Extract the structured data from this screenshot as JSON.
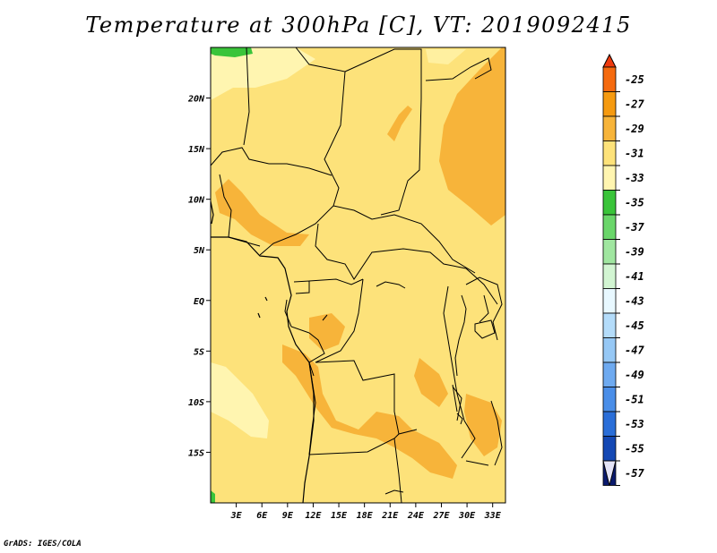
{
  "title": "Temperature at 300hPa [C], VT: 2019092415",
  "credit": "GrADS: IGES/COLA",
  "map": {
    "lon_range": [
      0,
      34.5
    ],
    "lat_range": [
      -20,
      25
    ],
    "lat_ticks": [
      {
        "value": 20,
        "label": "20N"
      },
      {
        "value": 15,
        "label": "15N"
      },
      {
        "value": 10,
        "label": "10N"
      },
      {
        "value": 5,
        "label": "5N"
      },
      {
        "value": 0,
        "label": "EQ"
      },
      {
        "value": -5,
        "label": "5S"
      },
      {
        "value": -10,
        "label": "10S"
      },
      {
        "value": -15,
        "label": "15S"
      }
    ],
    "lon_ticks": [
      {
        "value": 3,
        "label": "3E"
      },
      {
        "value": 6,
        "label": "6E"
      },
      {
        "value": 9,
        "label": "9E"
      },
      {
        "value": 12,
        "label": "12E"
      },
      {
        "value": 15,
        "label": "15E"
      },
      {
        "value": 18,
        "label": "18E"
      },
      {
        "value": 21,
        "label": "21E"
      },
      {
        "value": 24,
        "label": "24E"
      },
      {
        "value": 27,
        "label": "27E"
      },
      {
        "value": 30,
        "label": "30E"
      },
      {
        "value": 33,
        "label": "33E"
      }
    ],
    "background_color": "#fde27a"
  },
  "colorbar": {
    "top_color": "#ee3a0e",
    "bottom_color": "#e4e4f7",
    "levels": [
      {
        "label": "-25",
        "color": "#f56a0f"
      },
      {
        "label": "-27",
        "color": "#f59a10"
      },
      {
        "label": "-29",
        "color": "#f7b43a"
      },
      {
        "label": "-31",
        "color": "#fde27a"
      },
      {
        "label": "-33",
        "color": "#fff5b0"
      },
      {
        "label": "-35",
        "color": "#3ac43a"
      },
      {
        "label": "-37",
        "color": "#6ad66a"
      },
      {
        "label": "-39",
        "color": "#a0e6a0"
      },
      {
        "label": "-41",
        "color": "#d2f5d2"
      },
      {
        "label": "-43",
        "color": "#e8f8ff"
      },
      {
        "label": "-45",
        "color": "#b4dcfa"
      },
      {
        "label": "-47",
        "color": "#96c8f5"
      },
      {
        "label": "-49",
        "color": "#6eaaf0"
      },
      {
        "label": "-51",
        "color": "#4a8ee8"
      },
      {
        "label": "-53",
        "color": "#2a6ed8"
      },
      {
        "label": "-55",
        "color": "#1448b4"
      },
      {
        "label": "-57",
        "color": "#0a1a6e"
      }
    ]
  }
}
